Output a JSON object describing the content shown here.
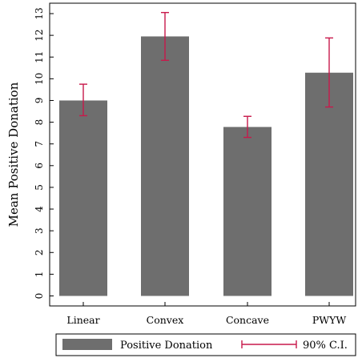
{
  "chart_data": {
    "type": "bar",
    "title": "",
    "xlabel": "",
    "ylabel": "Mean Positive Donation",
    "ylim": [
      0,
      13
    ],
    "yticks": [
      0,
      1,
      2,
      3,
      4,
      5,
      6,
      7,
      8,
      9,
      10,
      11,
      12,
      13
    ],
    "grid": false,
    "legend_placement": "bottom",
    "categories": [
      "Linear",
      "Convex",
      "Concave",
      "PWYW"
    ],
    "series": [
      {
        "name": "Positive Donation",
        "values": [
          9.0,
          11.95,
          7.78,
          10.28
        ],
        "color": "#6e6e6e"
      }
    ],
    "error_bars": {
      "name": "90% C.I.",
      "color": "#c8194b",
      "lower": [
        8.3,
        10.85,
        7.3,
        8.7
      ],
      "upper": [
        9.75,
        13.05,
        8.27,
        11.88
      ]
    },
    "legend": [
      {
        "label": "Positive Donation",
        "kind": "bar",
        "color": "#6e6e6e"
      },
      {
        "label": "90% C.I.",
        "kind": "errorbar",
        "color": "#c8194b"
      }
    ]
  }
}
